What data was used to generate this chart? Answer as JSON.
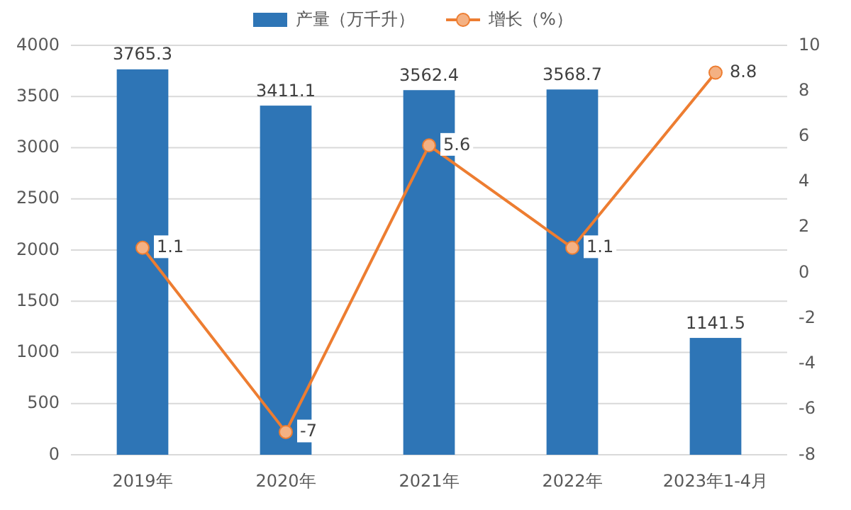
{
  "chart_data": {
    "type": "bar",
    "categories": [
      "2019年",
      "2020年",
      "2021年",
      "2022年",
      "2023年1-4月"
    ],
    "series": [
      {
        "name": "产量（万千升）",
        "color": "#2e75b6",
        "values": [
          3765.3,
          3411.1,
          3562.4,
          3568.7,
          1141.5
        ]
      },
      {
        "name": "增长（%）",
        "type": "line",
        "axis": "y2",
        "color": "#ed7d31",
        "values": [
          1.1,
          -7,
          5.6,
          1.1,
          8.8
        ]
      }
    ],
    "ylim": [
      0,
      4000
    ],
    "yticks": [
      0,
      500,
      1000,
      1500,
      2000,
      2500,
      3000,
      3500,
      4000
    ],
    "y2lim": [
      -8,
      10
    ],
    "y2ticks": [
      -8,
      -6,
      -4,
      -2,
      0,
      2,
      4,
      6,
      8,
      10
    ],
    "grid": "y",
    "legend": "top",
    "marker": "circle",
    "data_labels": true
  }
}
